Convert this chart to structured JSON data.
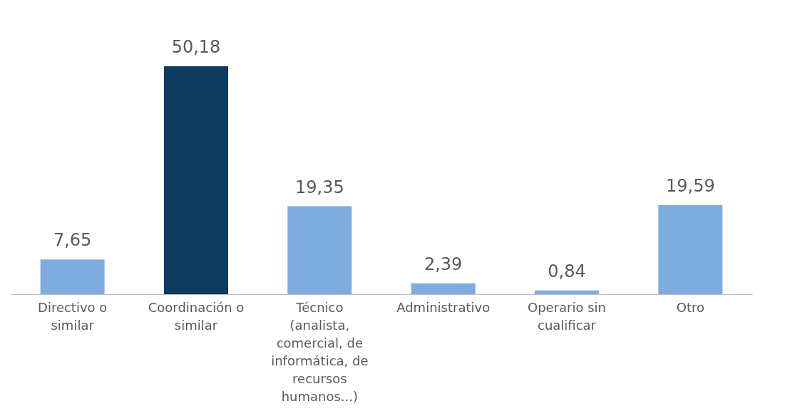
{
  "chart_data": {
    "type": "bar",
    "categories": [
      "Directivo o similar",
      "Coordinación o similar",
      "Técnico (analista, comercial, de informática, de recursos humanos...)",
      "Administrativo",
      "Operario sin cualificar",
      "Otro"
    ],
    "values": [
      7.65,
      50.18,
      19.35,
      2.39,
      0.84,
      19.59
    ],
    "value_labels": [
      "7,65",
      "50,18",
      "19,35",
      "2,39",
      "0,84",
      "19,59"
    ],
    "colors": [
      "#7facdf",
      "#0f3a5f",
      "#7facdf",
      "#7facdf",
      "#7facdf",
      "#7facdf"
    ],
    "grid": false
  }
}
